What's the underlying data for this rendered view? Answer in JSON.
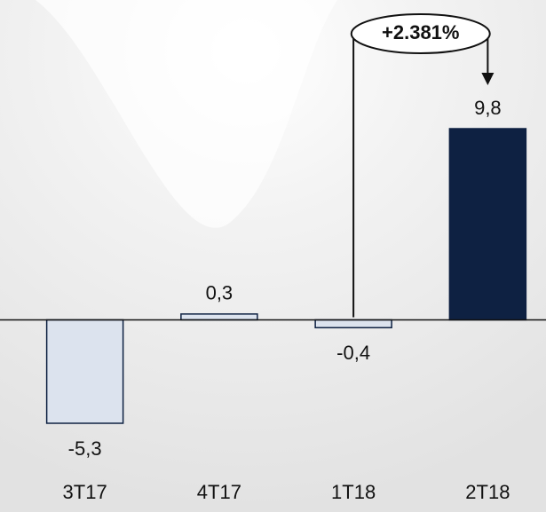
{
  "chart_data": {
    "type": "bar",
    "categories": [
      "3T17",
      "4T17",
      "1T18",
      "2T18"
    ],
    "values": [
      -5.3,
      0.3,
      -0.4,
      9.8
    ],
    "value_labels": [
      "-5,3",
      "0,3",
      "-0,4",
      "9,8"
    ],
    "colors": [
      "#dce3ee",
      "#dce3ee",
      "#dce3ee",
      "#0e2142"
    ],
    "annotation": "+2.381%"
  }
}
